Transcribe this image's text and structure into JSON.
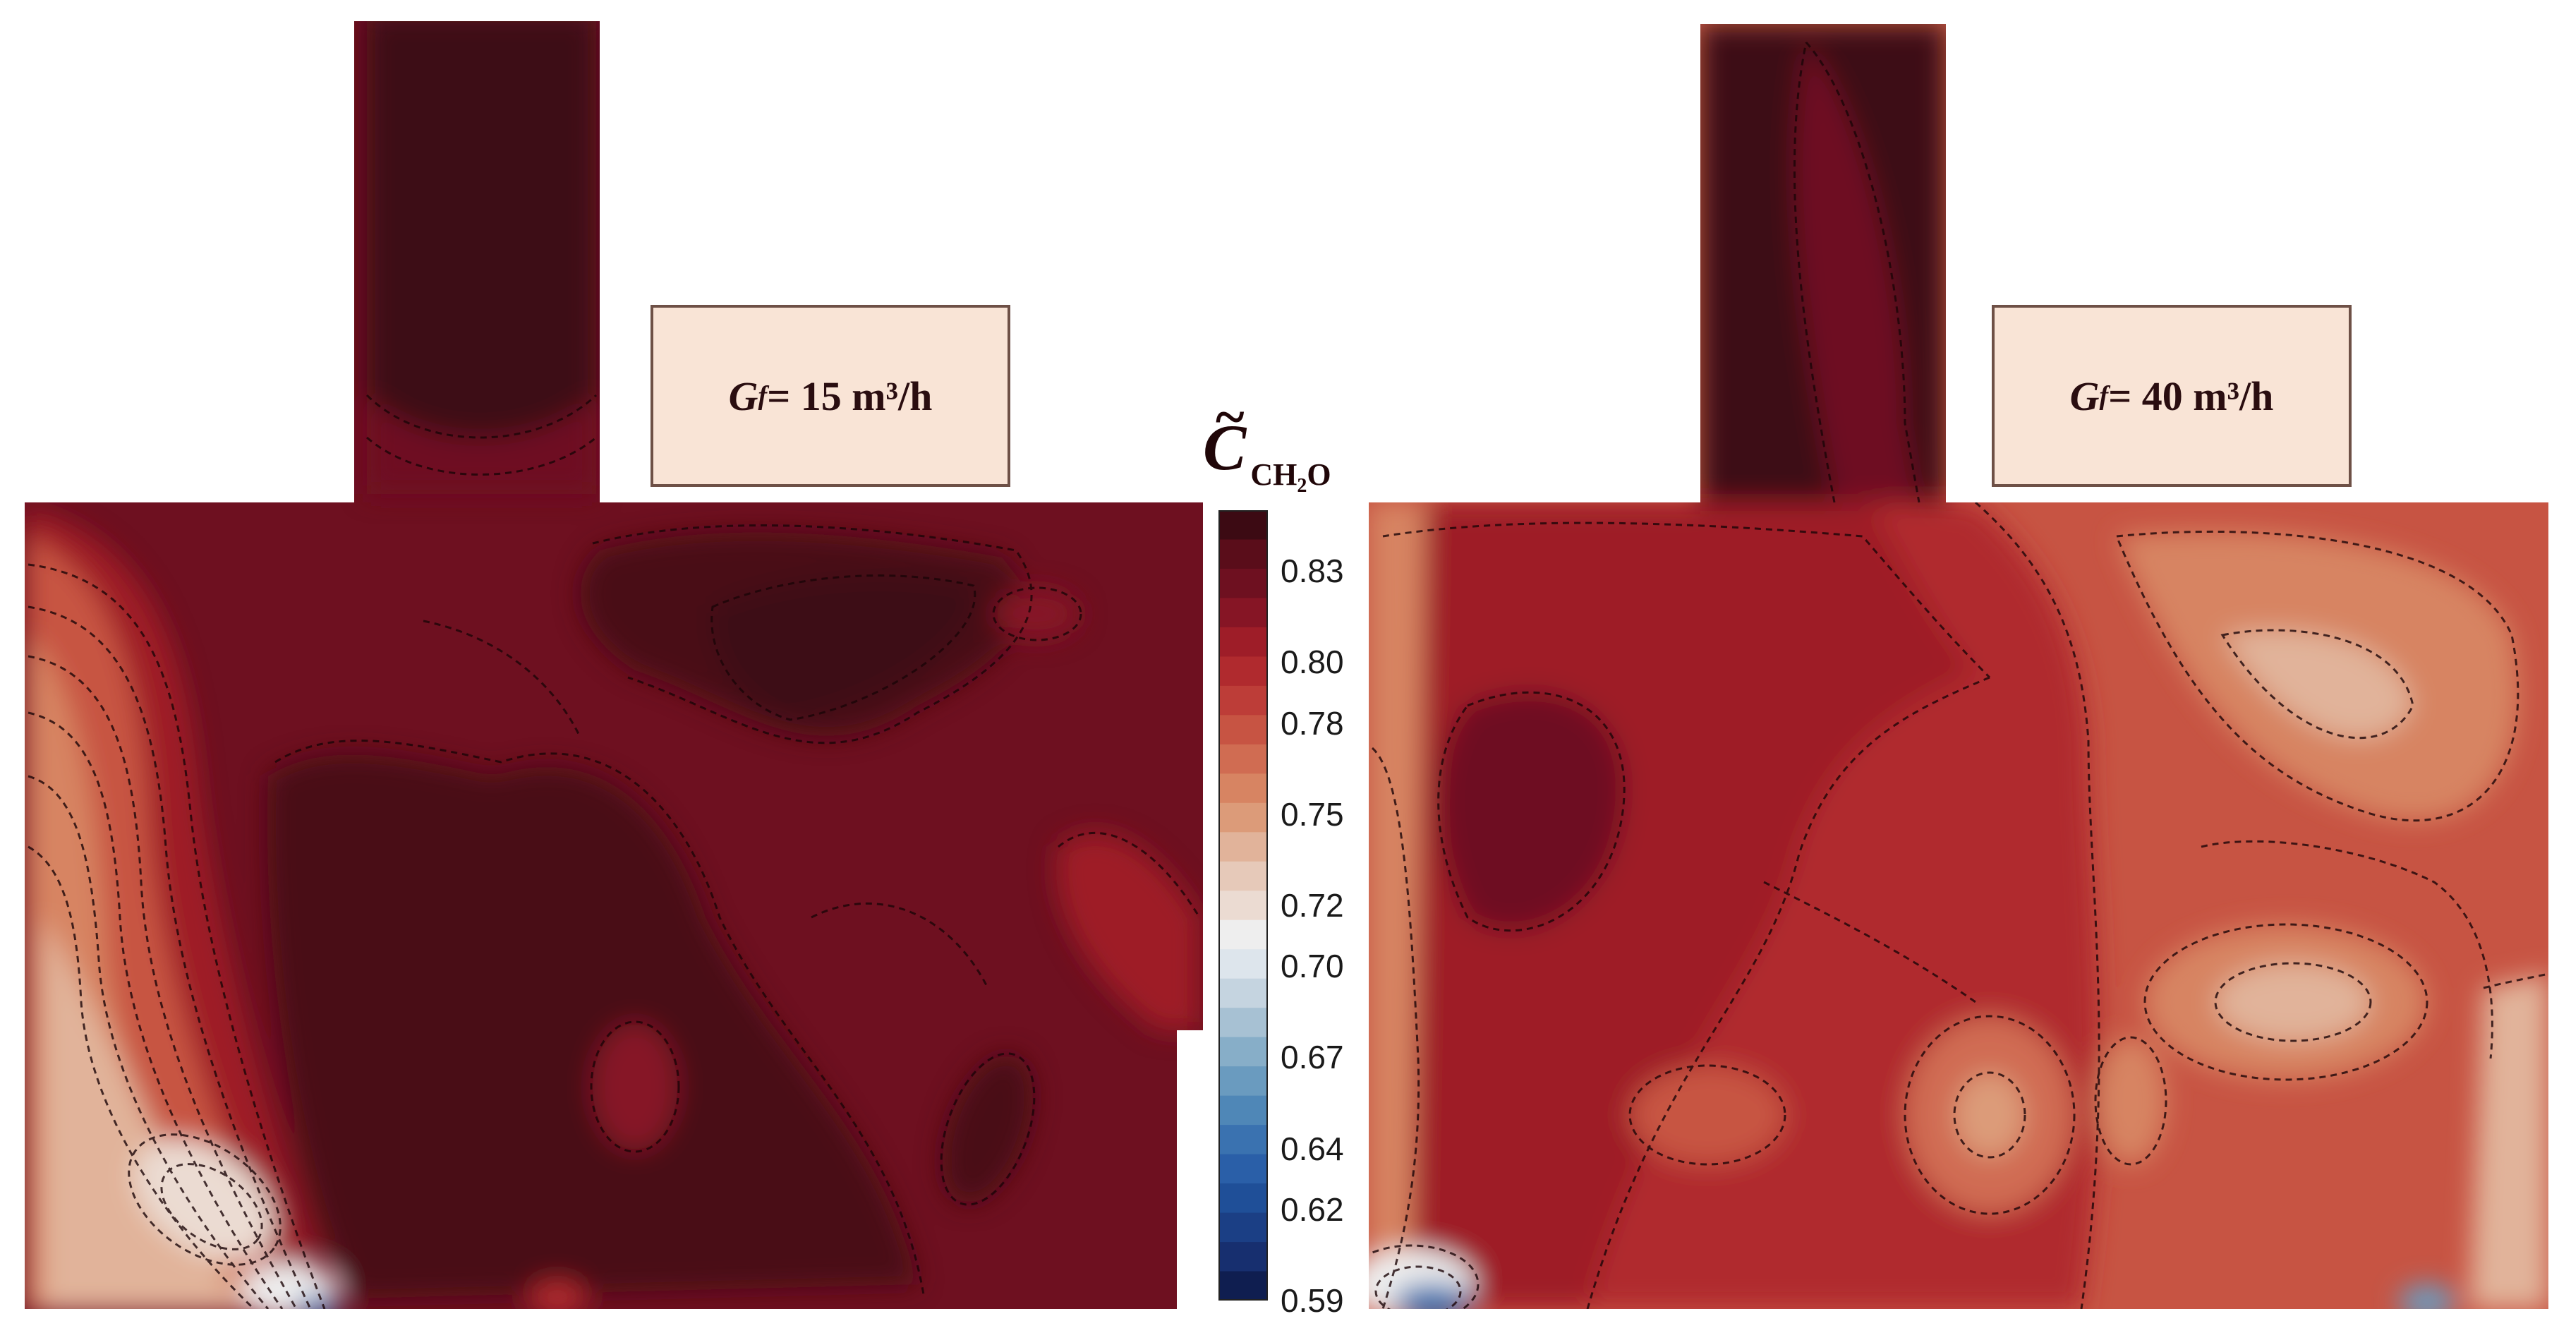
{
  "chart_data": {
    "type": "heatmap",
    "panels": [
      {
        "label_symbol": "G",
        "label_subscript": "f",
        "label_value": "= 15 m³/h"
      },
      {
        "label_symbol": "G",
        "label_subscript": "f",
        "label_value": "= 40 m³/h"
      }
    ],
    "colorbar": {
      "title_symbol": "C",
      "title_accent": "~",
      "title_subscript_main": "CH",
      "title_subscript_index": "2",
      "title_subscript_tail": "O",
      "range": [
        0.59,
        0.85
      ],
      "tick_labels": [
        "0.83",
        "0.80",
        "0.78",
        "0.75",
        "0.72",
        "0.70",
        "0.67",
        "0.64",
        "0.62",
        "0.59"
      ],
      "colors_top_to_bottom": [
        "#3c0a13",
        "#5a0d1a",
        "#6e1020",
        "#861525",
        "#9e1d28",
        "#b02a2e",
        "#bd3d38",
        "#c75443",
        "#d06c52",
        "#d78462",
        "#dc9b79",
        "#e1b39a",
        "#e6c9b9",
        "#ebdbd2",
        "#eeeeee",
        "#dde5ec",
        "#c5d4e0",
        "#a7c1d3",
        "#87aec8",
        "#6a9bbf",
        "#4f87b7",
        "#3a72b0",
        "#2a5fa8",
        "#1f4f98",
        "#1b3f85",
        "#172f6f",
        "#0f1e50"
      ]
    }
  }
}
